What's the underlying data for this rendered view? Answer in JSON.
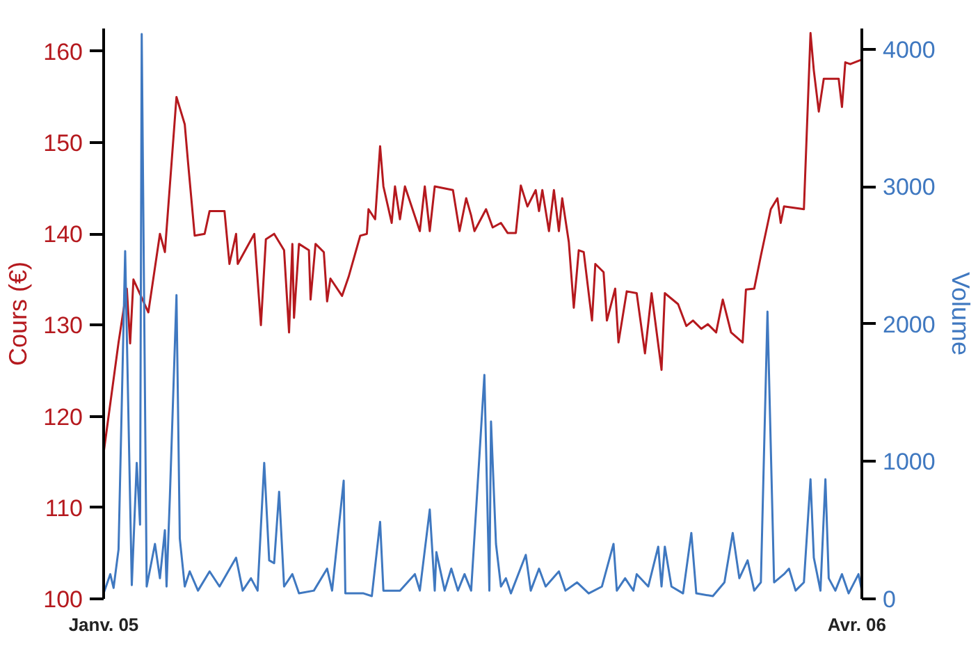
{
  "chart_data": {
    "type": "line",
    "ylabel": "Cours (€)",
    "y2label": "Volume",
    "xlim": [
      "2005-01-01",
      "2006-04-04"
    ],
    "xticks": [
      {
        "value": "2005-01-01",
        "label": "Janv. 05"
      },
      {
        "value": "2006-04-01",
        "label": "Avr. 06"
      }
    ],
    "ylim": [
      100,
      162.5
    ],
    "yticks": [
      100,
      110,
      120,
      130,
      140,
      150,
      160
    ],
    "y2lim": [
      0,
      4150
    ],
    "y2ticks": [
      0,
      1000,
      2000,
      3000,
      4000
    ],
    "grid": false,
    "series": [
      {
        "color": "#b5191e",
        "x": [
          "2005-01-01",
          "2005-01-10",
          "2005-01-15",
          "2005-01-17",
          "2005-01-19",
          "2005-01-28",
          "2005-02-04",
          "2005-02-07",
          "2005-02-14",
          "2005-02-19",
          "2005-02-21",
          "2005-02-25",
          "2005-03-03",
          "2005-03-06",
          "2005-03-15",
          "2005-03-18",
          "2005-03-22",
          "2005-03-23",
          "2005-04-02",
          "2005-04-06",
          "2005-04-09",
          "2005-04-14",
          "2005-04-20",
          "2005-04-23",
          "2005-04-25",
          "2005-04-26",
          "2005-04-29",
          "2005-05-05",
          "2005-05-06",
          "2005-05-09",
          "2005-05-14",
          "2005-05-16",
          "2005-05-18",
          "2005-05-25",
          "2005-05-29",
          "2005-06-05",
          "2005-06-09",
          "2005-06-10",
          "2005-06-14",
          "2005-06-17",
          "2005-06-19",
          "2005-06-24",
          "2005-06-26",
          "2005-06-29",
          "2005-07-02",
          "2005-07-11",
          "2005-07-14",
          "2005-07-17",
          "2005-07-20",
          "2005-07-31",
          "2005-08-04",
          "2005-08-08",
          "2005-08-11",
          "2005-08-13",
          "2005-08-20",
          "2005-08-24",
          "2005-08-29",
          "2005-09-02",
          "2005-09-07",
          "2005-09-10",
          "2005-09-14",
          "2005-09-19",
          "2005-09-21",
          "2005-09-23",
          "2005-09-27",
          "2005-09-30",
          "2005-10-03",
          "2005-10-05",
          "2005-10-09",
          "2005-10-12",
          "2005-10-15",
          "2005-10-18",
          "2005-10-23",
          "2005-10-25",
          "2005-10-30",
          "2005-11-01",
          "2005-11-06",
          "2005-11-08",
          "2005-11-13",
          "2005-11-19",
          "2005-11-24",
          "2005-11-28",
          "2005-12-04",
          "2005-12-06",
          "2005-12-14",
          "2005-12-19",
          "2005-12-23",
          "2005-12-28",
          "2006-01-01",
          "2006-01-06",
          "2006-01-10",
          "2006-01-15",
          "2006-01-22",
          "2006-01-24",
          "2006-01-29",
          "2006-02-02",
          "2006-02-08",
          "2006-02-12",
          "2006-02-14",
          "2006-02-16",
          "2006-02-28",
          "2006-03-04",
          "2006-03-06",
          "2006-03-09",
          "2006-03-12",
          "2006-03-21",
          "2006-03-23",
          "2006-03-25",
          "2006-03-28",
          "2006-04-04"
        ],
        "values": [
          116,
          128.1,
          134,
          128,
          135,
          131.4,
          140,
          138,
          155,
          152,
          147.8,
          139.8,
          140,
          142.5,
          142.5,
          136.7,
          140,
          136.7,
          140,
          130,
          139.4,
          140,
          138.2,
          129.2,
          138.9,
          130.8,
          138.9,
          138.2,
          132.8,
          138.9,
          138,
          132.6,
          135.1,
          133.2,
          135.3,
          139.8,
          140,
          142.7,
          141.6,
          149.6,
          145.2,
          141.2,
          145.2,
          141.6,
          145.2,
          140.3,
          145.2,
          140.3,
          145.2,
          144.8,
          140.3,
          143.9,
          142,
          140.3,
          142.7,
          140.7,
          141.2,
          140.1,
          140.1,
          145.3,
          143,
          144.8,
          142.5,
          144.8,
          140.3,
          144.8,
          140.3,
          143.9,
          139.1,
          131.9,
          138.2,
          138,
          130.5,
          136.7,
          135.8,
          130.5,
          134,
          128.1,
          133.7,
          133.5,
          126.9,
          133.5,
          125.1,
          133.5,
          132.3,
          129.9,
          130.5,
          129.6,
          130.1,
          129.2,
          132.8,
          129.2,
          128.1,
          133.9,
          134,
          137.6,
          142.7,
          143.9,
          141.2,
          143,
          142.7,
          162,
          157.9,
          153.4,
          157,
          157,
          153.9,
          158.8,
          158.6,
          159.1
        ]
      },
      {
        "color": "#3f78c0",
        "axis": "y2",
        "x": [
          "2005-01-01",
          "2005-01-05",
          "2005-01-07",
          "2005-01-10",
          "2005-01-14",
          "2005-01-18",
          "2005-01-21",
          "2005-01-23",
          "2005-01-24",
          "2005-01-27",
          "2005-02-01",
          "2005-02-04",
          "2005-02-07",
          "2005-02-08",
          "2005-02-10",
          "2005-02-14",
          "2005-02-16",
          "2005-02-19",
          "2005-02-22",
          "2005-02-27",
          "2005-03-06",
          "2005-03-12",
          "2005-03-22",
          "2005-03-26",
          "2005-03-31",
          "2005-04-04",
          "2005-04-08",
          "2005-04-11",
          "2005-04-14",
          "2005-04-17",
          "2005-04-20",
          "2005-04-25",
          "2005-04-29",
          "2005-05-08",
          "2005-05-16",
          "2005-05-19",
          "2005-05-26",
          "2005-05-27",
          "2005-06-07",
          "2005-06-12",
          "2005-06-17",
          "2005-06-19",
          "2005-06-29",
          "2005-07-08",
          "2005-07-11",
          "2005-07-17",
          "2005-07-20",
          "2005-07-21",
          "2005-07-26",
          "2005-07-30",
          "2005-08-03",
          "2005-08-07",
          "2005-08-11",
          "2005-08-19",
          "2005-08-22",
          "2005-08-23",
          "2005-08-26",
          "2005-08-29",
          "2005-09-01",
          "2005-09-04",
          "2005-09-13",
          "2005-09-16",
          "2005-09-21",
          "2005-09-25",
          "2005-10-03",
          "2005-10-07",
          "2005-10-14",
          "2005-10-21",
          "2005-10-29",
          "2005-11-05",
          "2005-11-07",
          "2005-11-12",
          "2005-11-17",
          "2005-11-19",
          "2005-11-26",
          "2005-12-02",
          "2005-12-04",
          "2005-12-06",
          "2005-12-10",
          "2005-12-17",
          "2005-12-22",
          "2005-12-25",
          "2006-01-04",
          "2006-01-11",
          "2006-01-16",
          "2006-01-20",
          "2006-01-25",
          "2006-01-29",
          "2006-02-02",
          "2006-02-06",
          "2006-02-10",
          "2006-02-16",
          "2006-02-19",
          "2006-02-23",
          "2006-02-28",
          "2006-03-04",
          "2006-03-06",
          "2006-03-10",
          "2006-03-13",
          "2006-03-15",
          "2006-03-19",
          "2006-03-23",
          "2006-03-27",
          "2006-04-02",
          "2006-04-04"
        ],
        "values": [
          40,
          180,
          80,
          360,
          2530,
          100,
          990,
          540,
          4110,
          90,
          400,
          150,
          500,
          90,
          740,
          2210,
          440,
          90,
          200,
          60,
          200,
          90,
          300,
          60,
          150,
          60,
          990,
          280,
          260,
          780,
          90,
          180,
          40,
          60,
          220,
          60,
          860,
          40,
          40,
          20,
          560,
          60,
          60,
          180,
          60,
          650,
          60,
          340,
          60,
          220,
          60,
          180,
          60,
          1630,
          60,
          1290,
          400,
          90,
          150,
          40,
          320,
          60,
          220,
          90,
          200,
          60,
          120,
          40,
          90,
          400,
          60,
          150,
          60,
          180,
          90,
          380,
          90,
          380,
          90,
          40,
          480,
          40,
          20,
          120,
          480,
          150,
          280,
          60,
          120,
          2090,
          120,
          180,
          220,
          60,
          120,
          870,
          300,
          60,
          870,
          150,
          60,
          180,
          40,
          180,
          60
        ]
      }
    ]
  }
}
